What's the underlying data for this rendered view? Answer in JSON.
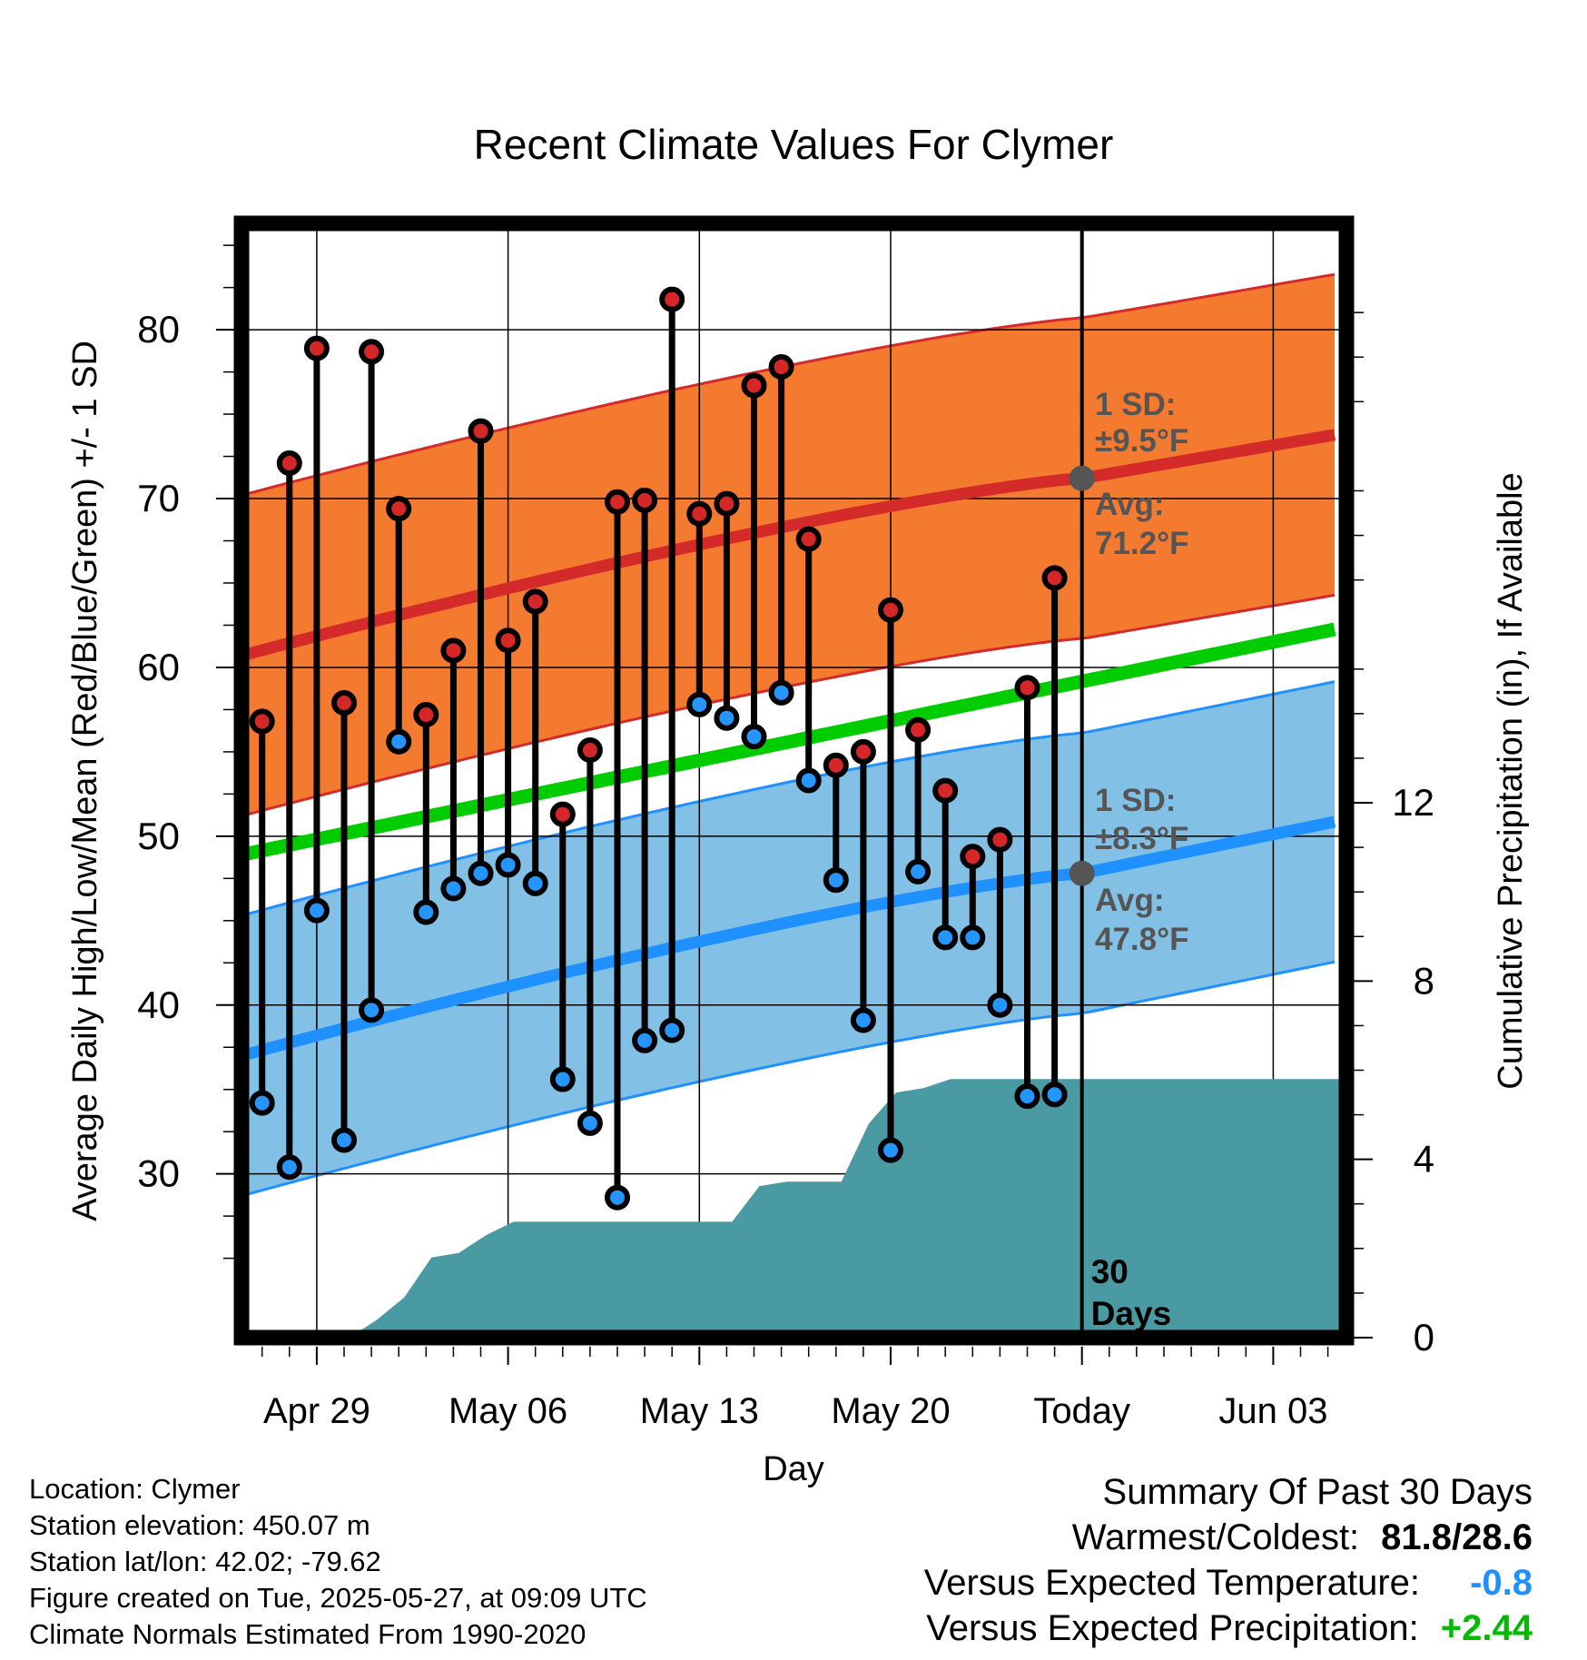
{
  "chart_data": {
    "type": "line",
    "title": "Recent Climate Values For Clymer",
    "xlabel": "Day",
    "ylabel_left": "Average Daily High/Low/Mean (Red/Blue/Green) +/- 1 SD",
    "ylabel_right": "Cumulative Precipitation (in), If Available",
    "x_tick_labels": [
      "Apr 29",
      "May 06",
      "May 13",
      "May 20",
      "Today",
      "Jun 03"
    ],
    "y_left_ticks": [
      "30",
      "40",
      "50",
      "60",
      "70",
      "80"
    ],
    "y_right_ticks": [
      "0",
      "4",
      "8",
      "12"
    ],
    "ylim_left": [
      20.3,
      86.3
    ],
    "ylim_right": [
      0,
      25
    ],
    "grid": true,
    "days": [
      "Apr 27",
      "Apr 28",
      "Apr 29",
      "Apr 30",
      "May 01",
      "May 02",
      "May 03",
      "May 04",
      "May 05",
      "May 06",
      "May 07",
      "May 08",
      "May 09",
      "May 10",
      "May 11",
      "May 12",
      "May 13",
      "May 14",
      "May 15",
      "May 16",
      "May 17",
      "May 18",
      "May 19",
      "May 20",
      "May 21",
      "May 22",
      "May 23",
      "May 24",
      "May 25",
      "May 26"
    ],
    "daily_high": [
      56.8,
      72.1,
      78.9,
      57.9,
      78.7,
      69.4,
      57.2,
      61.0,
      74.0,
      61.6,
      63.9,
      51.3,
      55.1,
      69.8,
      69.9,
      81.8,
      69.1,
      69.7,
      76.7,
      77.8,
      67.6,
      54.2,
      55.0,
      63.4,
      56.3,
      52.7,
      48.8,
      49.8,
      58.8,
      65.3
    ],
    "daily_low": [
      34.2,
      30.4,
      45.6,
      32.0,
      39.7,
      55.6,
      45.5,
      46.9,
      47.8,
      48.3,
      47.2,
      35.6,
      33.0,
      28.6,
      37.9,
      38.5,
      57.8,
      57.0,
      55.9,
      58.5,
      53.3,
      47.4,
      39.1,
      31.4,
      47.9,
      44.0,
      44.0,
      40.0,
      34.6,
      34.7
    ],
    "cumulative_precip": [
      0.0,
      0.4,
      0.9,
      1.8,
      1.9,
      2.3,
      2.6,
      2.6,
      2.6,
      2.6,
      2.6,
      2.6,
      2.6,
      2.6,
      2.6,
      3.4,
      3.5,
      3.5,
      3.5,
      4.8,
      5.5,
      5.6,
      5.8,
      5.8,
      5.8,
      5.8,
      5.8,
      5.8
    ],
    "normal_high": {
      "start": 60.7,
      "today": 71.2,
      "end": 73.9,
      "sd": 9.5
    },
    "normal_low": {
      "start": 37.0,
      "today": 47.8,
      "end": 51.0,
      "sd": 8.3
    },
    "normal_mean": {
      "start": 48.9,
      "end": 62.4
    },
    "today_marker_label": "30 Days",
    "annotations": {
      "high_sd_line1": "1 SD:",
      "high_sd_line2": "±9.5°F",
      "high_avg_line1": "Avg:",
      "high_avg_line2": "71.2°F",
      "low_sd_line1": "1 SD:",
      "low_sd_line2": "±8.3°F",
      "low_avg_line1": "Avg:",
      "low_avg_line2": "47.8°F"
    },
    "colors": {
      "high_band": "#f47a30",
      "high_line": "#d42a2a",
      "low_band": "#82c0e6",
      "low_line": "#1e90ff",
      "mean_line": "#00cc00",
      "precip": "#4a9aa3",
      "high_dot": "#d62728",
      "low_dot": "#2596ff",
      "annotation": "#555555"
    }
  },
  "footer": {
    "location": "Location: Clymer",
    "elevation": "Station elevation: 450.07 m",
    "latlon": "Station lat/lon: 42.02; -79.62",
    "created": "Figure created on Tue, 2025-05-27, at 09:09 UTC",
    "normals": "Climate Normals Estimated From 1990-2020"
  },
  "summary": {
    "title": "Summary Of Past 30 Days",
    "warm_cold_label": "Warmest/Coldest:",
    "warm_cold_value": "81.8/28.6",
    "temp_label": "Versus Expected Temperature:",
    "temp_value": "-0.8",
    "temp_color": "#1e90ff",
    "precip_label": "Versus Expected Precipitation:",
    "precip_value": "+2.44",
    "precip_color": "#00bb00"
  }
}
